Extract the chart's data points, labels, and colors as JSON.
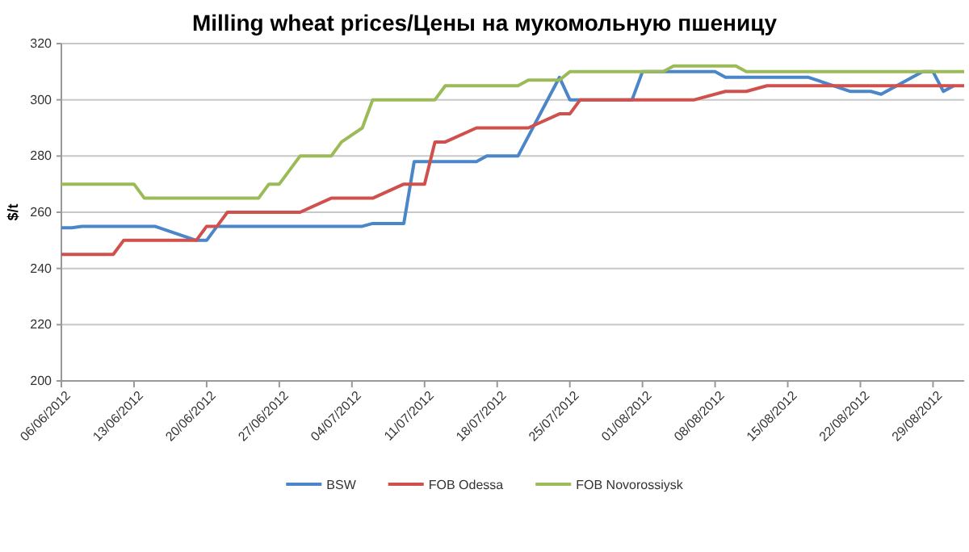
{
  "chart_data": {
    "type": "line",
    "title": "Milling wheat prices/Цены на мукомольную пшеницу",
    "ylabel": "$/t",
    "xlim": [
      "2012-06-06",
      "2012-09-01"
    ],
    "xticks": [
      {
        "value": "2012-06-06",
        "label": "06/06/2012"
      },
      {
        "value": "2012-06-13",
        "label": "13/06/2012"
      },
      {
        "value": "2012-06-20",
        "label": "20/06/2012"
      },
      {
        "value": "2012-06-27",
        "label": "27/06/2012"
      },
      {
        "value": "2012-07-04",
        "label": "04/07/2012"
      },
      {
        "value": "2012-07-11",
        "label": "11/07/2012"
      },
      {
        "value": "2012-07-18",
        "label": "18/07/2012"
      },
      {
        "value": "2012-07-25",
        "label": "25/07/2012"
      },
      {
        "value": "2012-08-01",
        "label": "01/08/2012"
      },
      {
        "value": "2012-08-08",
        "label": "08/08/2012"
      },
      {
        "value": "2012-08-15",
        "label": "15/08/2012"
      },
      {
        "value": "2012-08-22",
        "label": "22/08/2012"
      },
      {
        "value": "2012-08-29",
        "label": "29/08/2012"
      }
    ],
    "ylim": [
      200,
      320
    ],
    "yticks": [
      200,
      220,
      240,
      260,
      280,
      300,
      320
    ],
    "grid": "y",
    "legend": "bottom",
    "line_style": "solid",
    "marker": "none",
    "series": [
      {
        "name": "BSW",
        "color": "#4a86c8",
        "x": [
          "2012-06-06",
          "2012-06-07",
          "2012-06-08",
          "2012-06-15",
          "2012-06-19",
          "2012-06-20",
          "2012-06-21",
          "2012-07-05",
          "2012-07-06",
          "2012-07-09",
          "2012-07-10",
          "2012-07-16",
          "2012-07-17",
          "2012-07-20",
          "2012-07-24",
          "2012-07-25",
          "2012-07-31",
          "2012-08-01",
          "2012-08-08",
          "2012-08-09",
          "2012-08-17",
          "2012-08-21",
          "2012-08-23",
          "2012-08-24",
          "2012-08-28",
          "2012-08-29",
          "2012-08-30",
          "2012-08-31"
        ],
        "values": [
          254.5,
          254.5,
          255,
          255,
          250,
          250,
          255,
          255,
          256,
          256,
          278,
          278,
          280,
          280,
          308,
          300,
          300,
          310,
          310,
          308,
          308,
          303,
          303,
          302,
          310,
          310,
          303,
          305
        ]
      },
      {
        "name": "FOB Odessa",
        "color": "#d0504d",
        "x": [
          "2012-06-06",
          "2012-06-11",
          "2012-06-12",
          "2012-06-19",
          "2012-06-20",
          "2012-06-21",
          "2012-06-22",
          "2012-06-29",
          "2012-07-02",
          "2012-07-06",
          "2012-07-09",
          "2012-07-11",
          "2012-07-12",
          "2012-07-13",
          "2012-07-16",
          "2012-07-21",
          "2012-07-24",
          "2012-07-25",
          "2012-07-26",
          "2012-08-06",
          "2012-08-09",
          "2012-08-11",
          "2012-08-13",
          "2012-09-01"
        ],
        "values": [
          245,
          245,
          250,
          250,
          255,
          255,
          260,
          260,
          265,
          265,
          270,
          270,
          285,
          285,
          290,
          290,
          295,
          295,
          300,
          300,
          303,
          303,
          305,
          305
        ]
      },
      {
        "name": "FOB Novorossiysk",
        "color": "#9bbb59",
        "x": [
          "2012-06-06",
          "2012-06-13",
          "2012-06-14",
          "2012-06-25",
          "2012-06-26",
          "2012-06-27",
          "2012-06-29",
          "2012-07-02",
          "2012-07-03",
          "2012-07-05",
          "2012-07-06",
          "2012-07-12",
          "2012-07-13",
          "2012-07-20",
          "2012-07-21",
          "2012-07-24",
          "2012-07-25",
          "2012-08-03",
          "2012-08-04",
          "2012-08-10",
          "2012-08-11",
          "2012-09-01"
        ],
        "values": [
          270,
          270,
          265,
          265,
          270,
          270,
          280,
          280,
          285,
          290,
          300,
          300,
          305,
          305,
          307,
          307,
          310,
          310,
          312,
          312,
          310,
          310
        ]
      }
    ]
  }
}
